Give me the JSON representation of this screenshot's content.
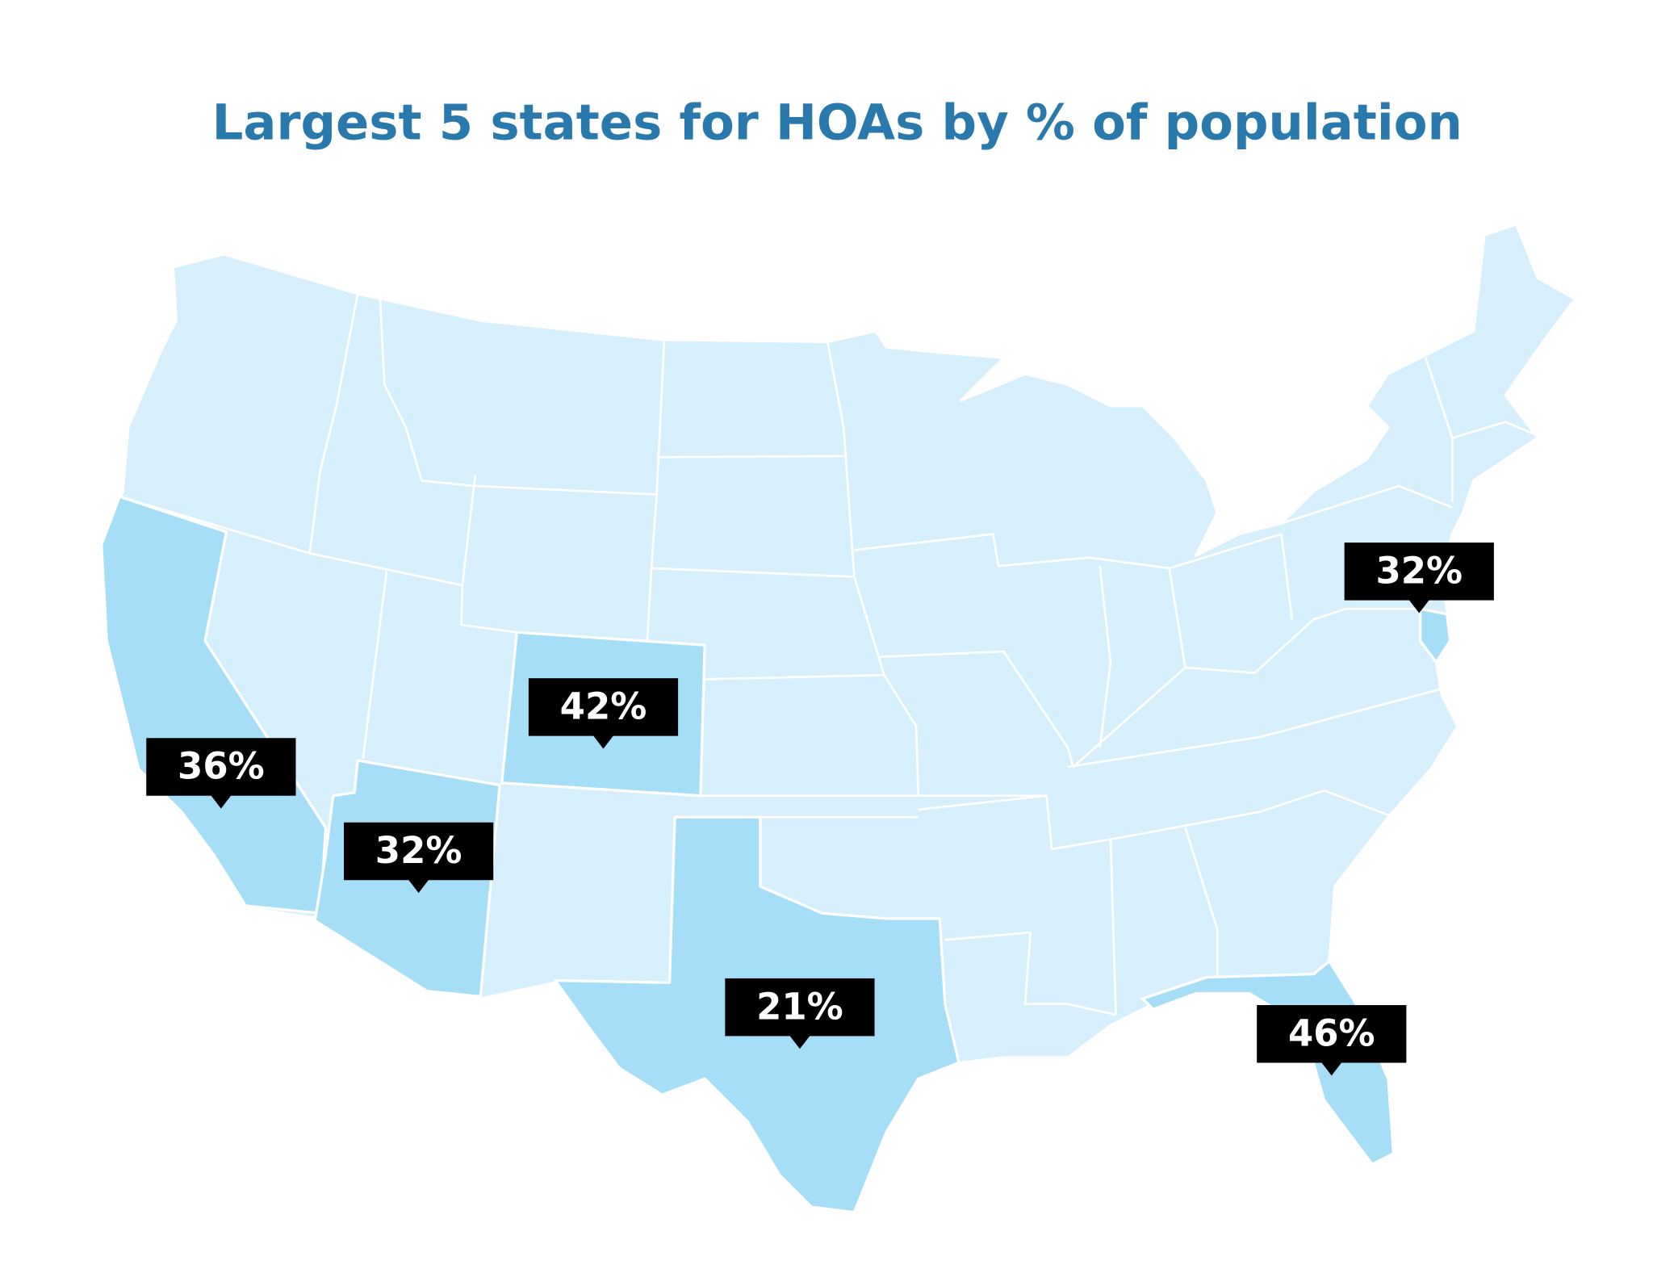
{
  "title": "Largest 5 states for HOAs by % of population",
  "callouts": [
    "32%",
    "42%",
    "36%",
    "32%",
    "21%",
    "46%"
  ]
}
